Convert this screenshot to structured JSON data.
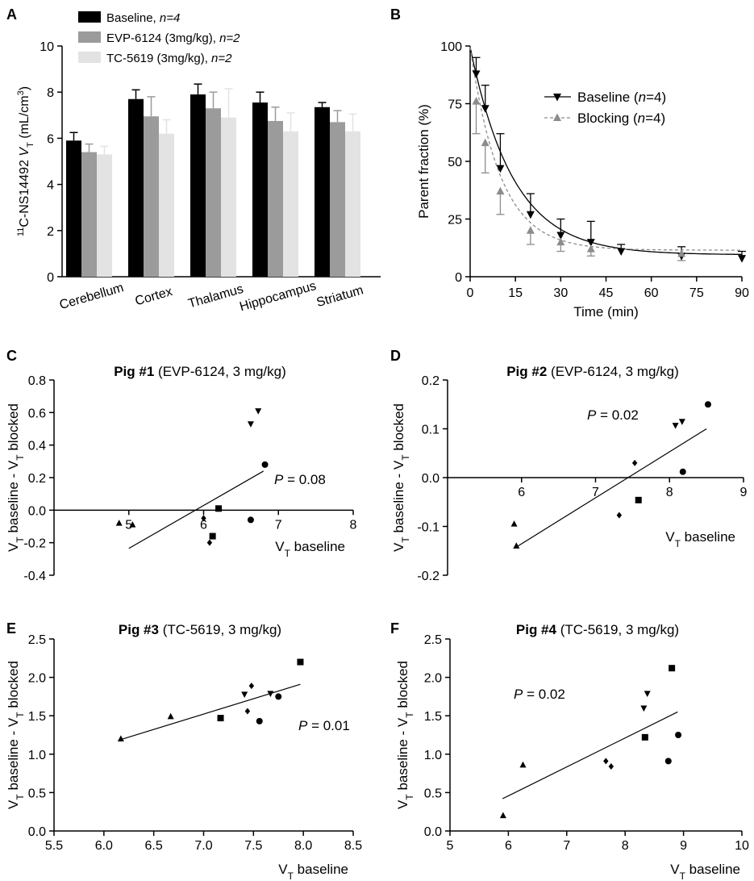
{
  "chart_data": [
    {
      "panel": "A",
      "type": "bar",
      "title": "",
      "ylabel": "11C-NS14492 VT (mL/cm3)",
      "ylabel_parts": {
        "pre": "11",
        "c": "C-NS14492 ",
        "v": "V",
        "sub": "T",
        "unit": " (mL/cm",
        "sup": "3",
        "close": ")"
      },
      "ylim": [
        0,
        10
      ],
      "yticks": [
        "0",
        "2",
        "4",
        "6",
        "8",
        "10"
      ],
      "categories": [
        "Cerebellum",
        "Cortex",
        "Thalamus",
        "Hippocampus",
        "Striatum"
      ],
      "series": [
        {
          "name": "Baseline",
          "n_label": "n=4",
          "color": "#000000",
          "values": [
            5.9,
            7.7,
            7.9,
            7.55,
            7.35
          ],
          "errors": [
            0.35,
            0.4,
            0.45,
            0.45,
            0.2
          ]
        },
        {
          "name": "EVP-6124 (3mg/kg)",
          "n_label": "n=2",
          "color": "#9b9b9b",
          "values": [
            5.4,
            6.95,
            7.3,
            6.75,
            6.7
          ],
          "errors": [
            0.35,
            0.85,
            0.7,
            0.6,
            0.5
          ]
        },
        {
          "name": "TC-5619 (3mg/kg)",
          "n_label": "n=2",
          "color": "#e3e3e3",
          "values": [
            5.3,
            6.2,
            6.9,
            6.3,
            6.3
          ],
          "errors": [
            0.35,
            0.6,
            1.25,
            0.8,
            0.75
          ]
        }
      ]
    },
    {
      "panel": "B",
      "type": "line",
      "xlabel": "Time (min)",
      "ylabel": "Parent fraction (%)",
      "xlim": [
        0,
        90
      ],
      "ylim": [
        0,
        100
      ],
      "xticks": [
        "0",
        "15",
        "30",
        "45",
        "60",
        "75",
        "90"
      ],
      "yticks": [
        "0",
        "25",
        "50",
        "75",
        "100"
      ],
      "series": [
        {
          "name": "Baseline",
          "n_label": "n=4",
          "color": "#000000",
          "x": [
            2,
            5,
            10,
            20,
            30,
            40,
            50,
            70,
            90
          ],
          "y": [
            88,
            73,
            47,
            27,
            18,
            15,
            11,
            9,
            8
          ],
          "errors": [
            7,
            10,
            15,
            9,
            7,
            9,
            3,
            4,
            3
          ],
          "fit": {
            "a": 90,
            "k": 0.07,
            "c": 9.5
          }
        },
        {
          "name": "Blocking",
          "n_label": "n=4",
          "color": "#8c8c8c",
          "x": [
            2,
            5,
            10,
            20,
            30,
            40,
            70
          ],
          "y": [
            76,
            58,
            37,
            20,
            15,
            12,
            10
          ],
          "errors": [
            14,
            13,
            10,
            6,
            4,
            3,
            3
          ],
          "fit": {
            "a": 88,
            "k": 0.1,
            "c": 11.5
          }
        }
      ]
    },
    {
      "panel": "C",
      "type": "scatter",
      "title_bold": "Pig #1",
      "title_rest": " (EVP-6124, 3 mg/kg)",
      "xlabel": "VT baseline",
      "ylabel": "VT baseline - VT blocked",
      "p_value": "0.08",
      "xlim": [
        4,
        8
      ],
      "ylim": [
        -0.4,
        0.8
      ],
      "xticks": [
        "5",
        "6",
        "7",
        "8"
      ],
      "yticks": [
        "-0.4",
        "-0.2",
        "0.0",
        "0.2",
        "0.4",
        "0.6",
        "0.8"
      ],
      "points": [
        {
          "shape": "triangle",
          "x": 4.87,
          "y": -0.08
        },
        {
          "shape": "triangle",
          "x": 5.05,
          "y": -0.09
        },
        {
          "shape": "diamond",
          "x": 6.08,
          "y": -0.2
        },
        {
          "shape": "diamond",
          "x": 6.0,
          "y": -0.05
        },
        {
          "shape": "square",
          "x": 6.12,
          "y": -0.16
        },
        {
          "shape": "square",
          "x": 6.2,
          "y": 0.01
        },
        {
          "shape": "circle",
          "x": 6.63,
          "y": -0.06
        },
        {
          "shape": "circle",
          "x": 6.82,
          "y": 0.28
        },
        {
          "shape": "invtriangle",
          "x": 6.63,
          "y": 0.53
        },
        {
          "shape": "invtriangle",
          "x": 6.73,
          "y": 0.61
        }
      ],
      "fit": {
        "x": [
          5.0,
          6.8
        ],
        "y": [
          -0.235,
          0.24
        ]
      }
    },
    {
      "panel": "D",
      "type": "scatter",
      "title_bold": "Pig #2",
      "title_rest": " (EVP-6124, 3 mg/kg)",
      "xlabel": "VT baseline",
      "ylabel": "VT baseline - VT blocked",
      "p_value": "0.02",
      "xlim": [
        5,
        9
      ],
      "ylim": [
        -0.2,
        0.2
      ],
      "xticks": [
        "6",
        "7",
        "8",
        "9"
      ],
      "yticks": [
        "-0.2",
        "-0.1",
        "0.0",
        "0.1",
        "0.2"
      ],
      "points": [
        {
          "shape": "triangle",
          "x": 5.9,
          "y": -0.095
        },
        {
          "shape": "triangle",
          "x": 5.93,
          "y": -0.14
        },
        {
          "shape": "diamond",
          "x": 7.32,
          "y": -0.077
        },
        {
          "shape": "diamond",
          "x": 7.53,
          "y": 0.03
        },
        {
          "shape": "square",
          "x": 7.58,
          "y": -0.046
        },
        {
          "shape": "circle",
          "x": 8.18,
          "y": 0.012
        },
        {
          "shape": "circle",
          "x": 8.52,
          "y": 0.15
        },
        {
          "shape": "invtriangle",
          "x": 8.08,
          "y": 0.107
        },
        {
          "shape": "invtriangle",
          "x": 8.17,
          "y": 0.115
        }
      ],
      "fit": {
        "x": [
          5.9,
          8.5
        ],
        "y": [
          -0.145,
          0.1
        ]
      }
    },
    {
      "panel": "E",
      "type": "scatter",
      "title_bold": "Pig #3",
      "title_rest": " (TC-5619, 3 mg/kg)",
      "xlabel": "VT baseline",
      "ylabel": "VT baseline - VT blocked",
      "p_value": "0.01",
      "xlim": [
        5.5,
        8.5
      ],
      "ylim": [
        0,
        2.5
      ],
      "xticks": [
        "5.5",
        "6.0",
        "6.5",
        "7.0",
        "7.5",
        "8.0",
        "8.5"
      ],
      "yticks": [
        "0.0",
        "0.5",
        "1.0",
        "1.5",
        "2.0",
        "2.5"
      ],
      "points": [
        {
          "shape": "triangle",
          "x": 6.17,
          "y": 1.2
        },
        {
          "shape": "triangle",
          "x": 6.67,
          "y": 1.49
        },
        {
          "shape": "square",
          "x": 7.17,
          "y": 1.47
        },
        {
          "shape": "square",
          "x": 7.97,
          "y": 2.2
        },
        {
          "shape": "diamond",
          "x": 7.44,
          "y": 1.56
        },
        {
          "shape": "diamond",
          "x": 7.48,
          "y": 1.89
        },
        {
          "shape": "invtriangle",
          "x": 7.41,
          "y": 1.78
        },
        {
          "shape": "invtriangle",
          "x": 7.67,
          "y": 1.79
        },
        {
          "shape": "circle",
          "x": 7.56,
          "y": 1.43
        },
        {
          "shape": "circle",
          "x": 7.75,
          "y": 1.75
        }
      ],
      "fit": {
        "x": [
          6.17,
          7.97
        ],
        "y": [
          1.19,
          1.91
        ]
      }
    },
    {
      "panel": "F",
      "type": "scatter",
      "title_bold": "Pig #4",
      "title_rest": " (TC-5619, 3 mg/kg)",
      "xlabel": "VT baseline",
      "ylabel": "VT baseline - VT blocked",
      "p_value": "0.02",
      "xlim": [
        5,
        10
      ],
      "ylim": [
        0,
        2.5
      ],
      "xticks": [
        "5",
        "6",
        "7",
        "8",
        "9",
        "10"
      ],
      "yticks": [
        "0.0",
        "0.5",
        "1.0",
        "1.5",
        "2.0",
        "2.5"
      ],
      "points": [
        {
          "shape": "triangle",
          "x": 5.91,
          "y": 0.2
        },
        {
          "shape": "triangle",
          "x": 6.25,
          "y": 0.86
        },
        {
          "shape": "diamond",
          "x": 7.67,
          "y": 0.91
        },
        {
          "shape": "diamond",
          "x": 7.76,
          "y": 0.84
        },
        {
          "shape": "square",
          "x": 8.34,
          "y": 1.22
        },
        {
          "shape": "square",
          "x": 8.8,
          "y": 2.12
        },
        {
          "shape": "invtriangle",
          "x": 8.32,
          "y": 1.6
        },
        {
          "shape": "invtriangle",
          "x": 8.38,
          "y": 1.79
        },
        {
          "shape": "circle",
          "x": 8.74,
          "y": 0.91
        },
        {
          "shape": "circle",
          "x": 8.91,
          "y": 1.25
        }
      ],
      "fit": {
        "x": [
          5.9,
          8.9
        ],
        "y": [
          0.42,
          1.55
        ]
      }
    }
  ]
}
